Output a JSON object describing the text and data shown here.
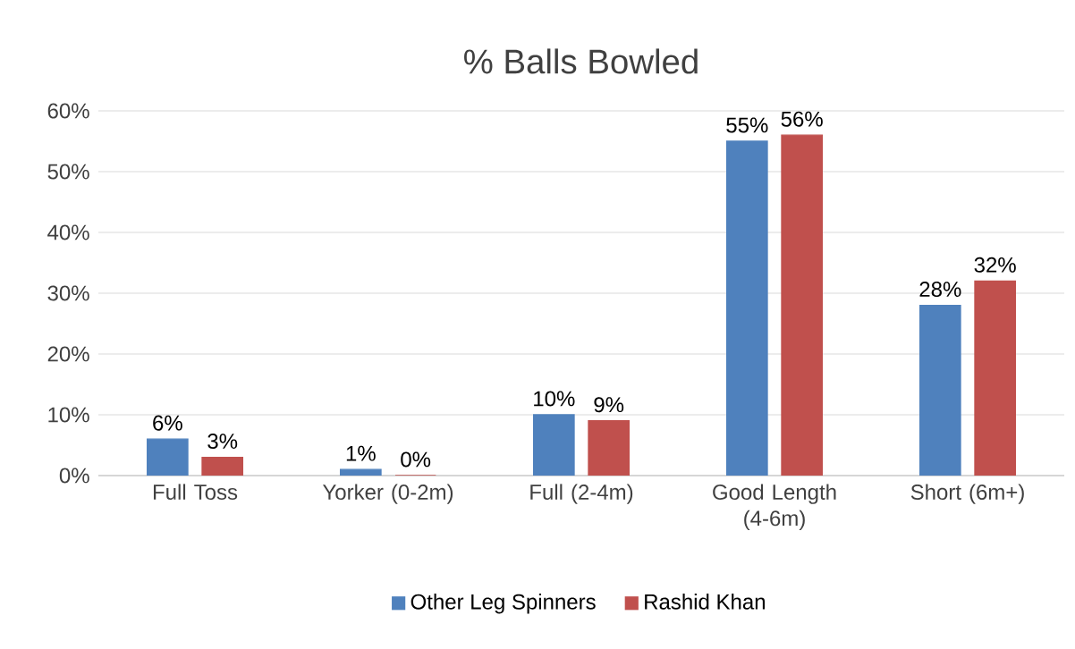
{
  "chart_data": {
    "type": "bar",
    "title": "% Balls Bowled",
    "categories": [
      "Full Toss",
      "Yorker (0-2m)",
      "Full (2-4m)",
      "Good Length (4-6m)",
      "Short (6m+)"
    ],
    "series": [
      {
        "name": "Other Leg Spinners",
        "color": "#4f81bd",
        "values": [
          6,
          1,
          10,
          55,
          28
        ],
        "value_labels": [
          "6%",
          "1%",
          "10%",
          "55%",
          "28%"
        ]
      },
      {
        "name": "Rashid Khan",
        "color": "#c0504d",
        "values": [
          3,
          0,
          9,
          56,
          32
        ],
        "value_labels": [
          "3%",
          "0%",
          "9%",
          "56%",
          "32%"
        ]
      }
    ],
    "ylim": [
      0,
      60
    ],
    "yticks": [
      {
        "value": 0,
        "label": "0%"
      },
      {
        "value": 10,
        "label": "10%"
      },
      {
        "value": 20,
        "label": "20%"
      },
      {
        "value": 30,
        "label": "30%"
      },
      {
        "value": 40,
        "label": "40%"
      },
      {
        "value": 50,
        "label": "50%"
      },
      {
        "value": 60,
        "label": "60%"
      }
    ],
    "grid": "y",
    "legend": "bottom"
  }
}
